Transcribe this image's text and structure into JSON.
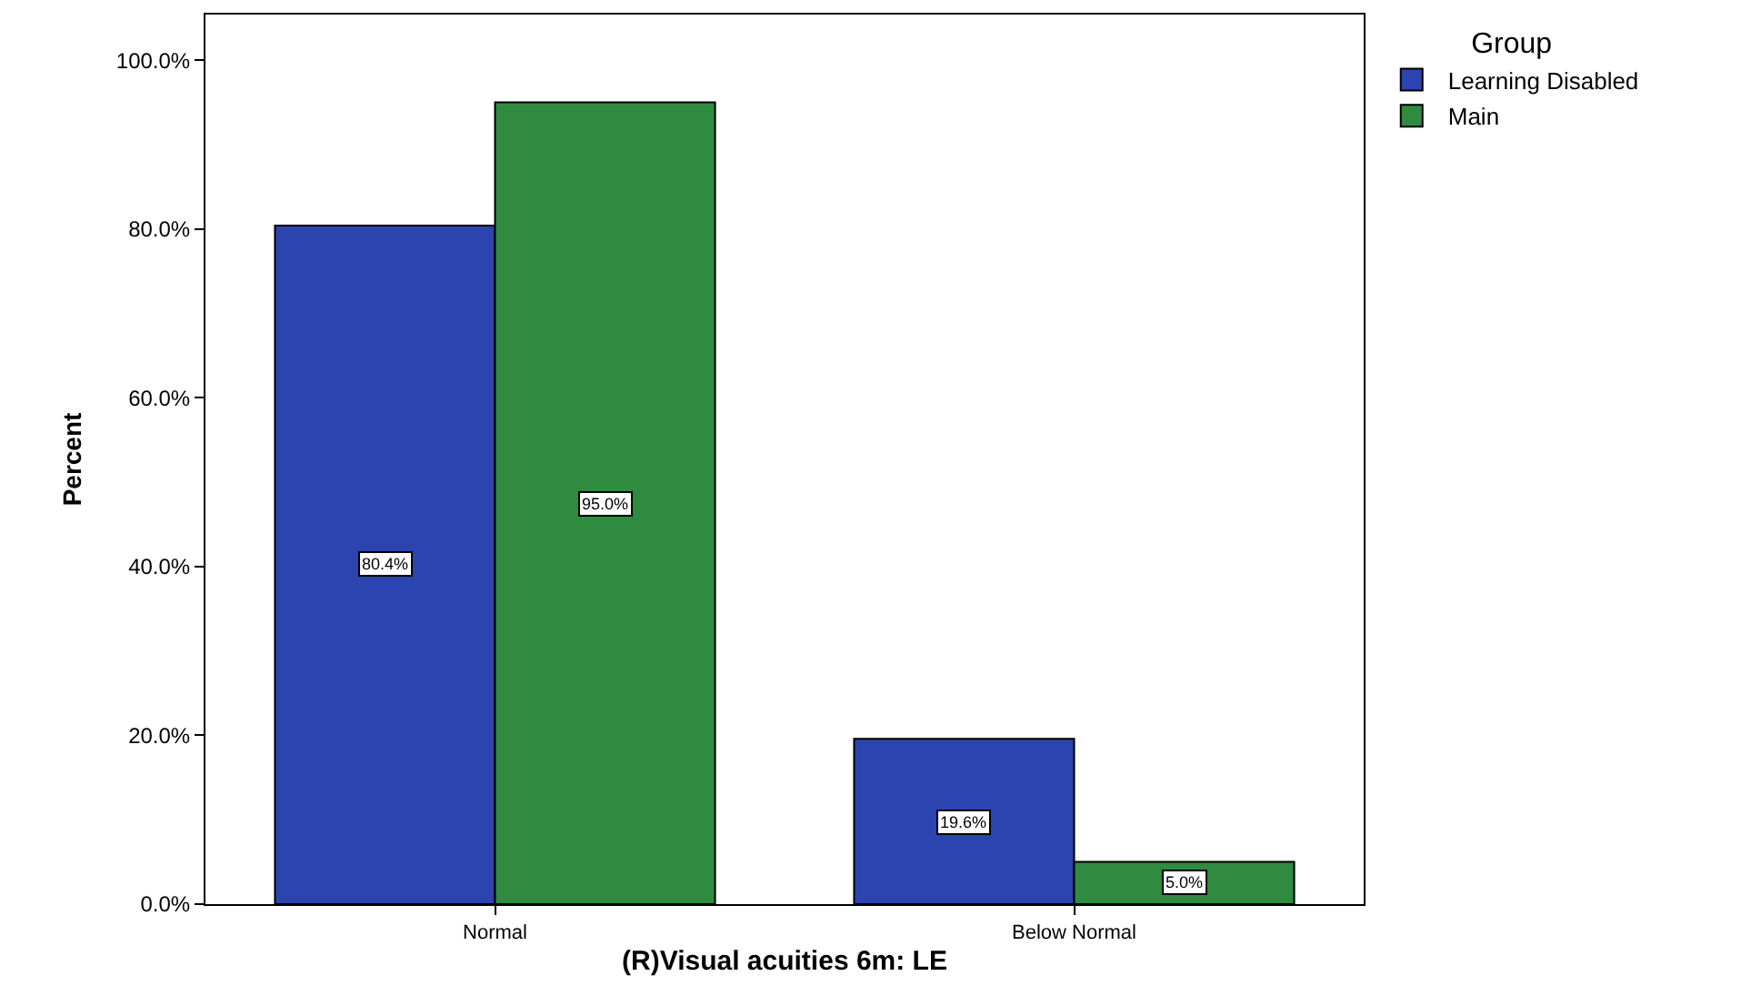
{
  "chart_data": {
    "type": "bar",
    "xlabel": "(R)Visual acuities 6m: LE",
    "ylabel": "Percent",
    "legend_title": "Group",
    "categories": [
      "Normal",
      "Below Normal"
    ],
    "series": [
      {
        "name": "Learning Disabled",
        "color": "#2c44b0",
        "values": [
          80.4,
          19.6
        ],
        "value_labels": [
          "80.4%",
          "19.6%"
        ]
      },
      {
        "name": "Main",
        "color": "#2e8b40",
        "values": [
          95.0,
          5.0
        ],
        "value_labels": [
          "95.0%",
          "5.0%"
        ]
      }
    ],
    "ylim": [
      0,
      105.4
    ],
    "yticks": [
      {
        "value": 0,
        "label": "0.0%"
      },
      {
        "value": 20,
        "label": "20.0%"
      },
      {
        "value": 40,
        "label": "40.0%"
      },
      {
        "value": 60,
        "label": "60.0%"
      },
      {
        "value": 80,
        "label": "80.0%"
      },
      {
        "value": 100,
        "label": "100.0%"
      }
    ],
    "legend": "top right"
  }
}
